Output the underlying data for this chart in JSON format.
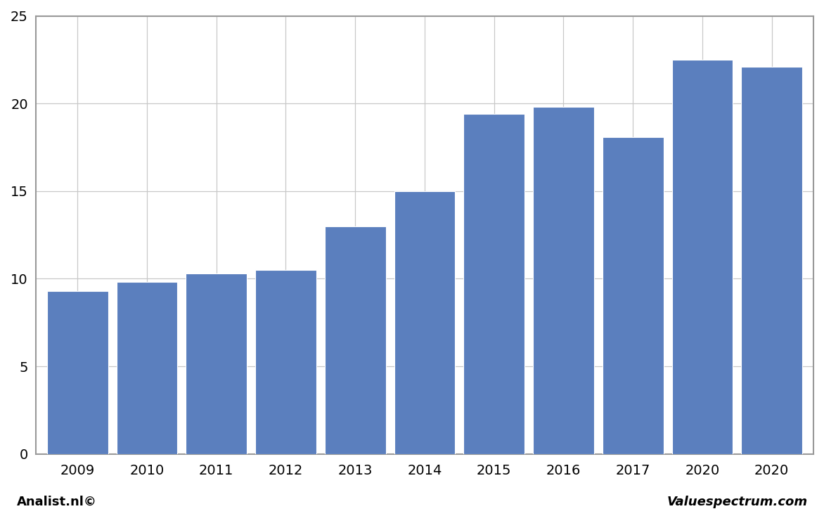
{
  "categories": [
    "2009",
    "2010",
    "2011",
    "2012",
    "2013",
    "2014",
    "2015",
    "2016",
    "2017",
    "2020",
    "2020"
  ],
  "values": [
    9.3,
    9.8,
    10.3,
    10.5,
    13.0,
    15.0,
    19.4,
    19.8,
    18.1,
    22.5,
    22.1
  ],
  "bar_color": "#5b7fbe",
  "ylim": [
    0,
    25
  ],
  "yticks": [
    0,
    5,
    10,
    15,
    20,
    25
  ],
  "grid_color": "#c8c8c8",
  "background_color": "#ffffff",
  "border_color": "#999999",
  "footer_left": "Analist.nl©",
  "footer_right": "Valuespectrum.com",
  "footer_fontsize": 13,
  "bar_width": 0.88
}
